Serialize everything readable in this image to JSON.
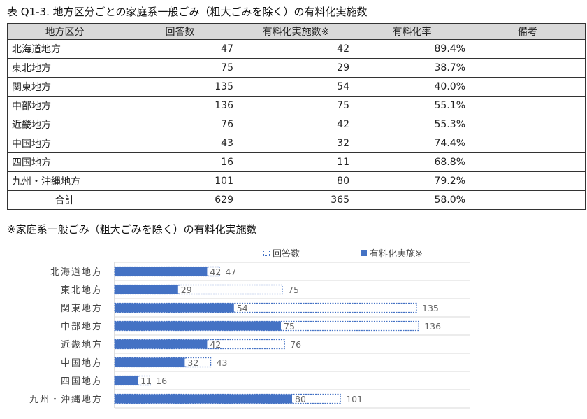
{
  "title": "表 Q1-3. 地方区分ごとの家庭系一般ごみ（粗大ごみを除く）の有料化実施数",
  "table": {
    "headers": [
      "地方区分",
      "回答数",
      "有料化実施数※",
      "有料化率",
      "備考"
    ],
    "rows": [
      {
        "region": "北海道地方",
        "responses": "47",
        "implemented": "42",
        "rate": "89.4%",
        "note": ""
      },
      {
        "region": "東北地方",
        "responses": "75",
        "implemented": "29",
        "rate": "38.7%",
        "note": ""
      },
      {
        "region": "関東地方",
        "responses": "135",
        "implemented": "54",
        "rate": "40.0%",
        "note": ""
      },
      {
        "region": "中部地方",
        "responses": "136",
        "implemented": "75",
        "rate": "55.1%",
        "note": ""
      },
      {
        "region": "近畿地方",
        "responses": "76",
        "implemented": "42",
        "rate": "55.3%",
        "note": ""
      },
      {
        "region": "中国地方",
        "responses": "43",
        "implemented": "32",
        "rate": "74.4%",
        "note": ""
      },
      {
        "region": "四国地方",
        "responses": "16",
        "implemented": "11",
        "rate": "68.8%",
        "note": ""
      },
      {
        "region": "九州・沖縄地方",
        "responses": "101",
        "implemented": "80",
        "rate": "79.2%",
        "note": ""
      }
    ],
    "total": {
      "region": "合計",
      "responses": "629",
      "implemented": "365",
      "rate": "58.0%",
      "note": ""
    }
  },
  "footnote": "※家庭系一般ごみ（粗大ごみを除く）の有料化実施数",
  "legend": {
    "responses": "回答数",
    "implemented": "有料化実施※"
  },
  "chart_data": {
    "type": "bar",
    "orientation": "horizontal",
    "categories": [
      "北海道地方",
      "東北地方",
      "関東地方",
      "中部地方",
      "近畿地方",
      "中国地方",
      "四国地方",
      "九州・沖縄地方"
    ],
    "series": [
      {
        "name": "回答数",
        "values": [
          47,
          75,
          135,
          136,
          76,
          43,
          16,
          101
        ],
        "style": "outline",
        "color": "#4472c4"
      },
      {
        "name": "有料化実施※",
        "values": [
          42,
          29,
          54,
          75,
          42,
          32,
          11,
          80
        ],
        "style": "filled",
        "color": "#4472c4"
      }
    ],
    "legend_position": "top",
    "grid": true
  }
}
